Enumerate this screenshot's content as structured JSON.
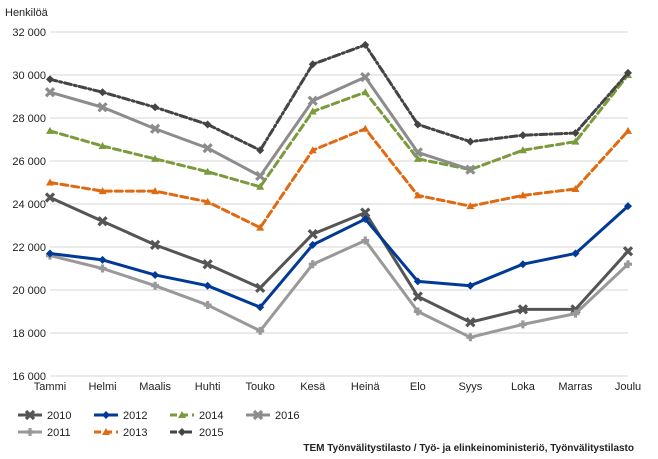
{
  "chart_data": {
    "type": "line",
    "title": "",
    "ylabel": "Henkilöä",
    "xlabel": "",
    "categories": [
      "Tammi",
      "Helmi",
      "Maalis",
      "Huhti",
      "Touko",
      "Kesä",
      "Heinä",
      "Elo",
      "Syys",
      "Loka",
      "Marras",
      "Joulu"
    ],
    "ylim": [
      16000,
      32000
    ],
    "yticks": [
      {
        "value": 16000,
        "label": "16 000"
      },
      {
        "value": 18000,
        "label": "18 000"
      },
      {
        "value": 20000,
        "label": "20 000"
      },
      {
        "value": 22000,
        "label": "22 000"
      },
      {
        "value": 24000,
        "label": "24 000"
      },
      {
        "value": 26000,
        "label": "26 000"
      },
      {
        "value": 28000,
        "label": "28 000"
      },
      {
        "value": 30000,
        "label": "30 000"
      },
      {
        "value": 32000,
        "label": "32 000"
      }
    ],
    "grid": true,
    "legend_position": "bottom-left",
    "series": [
      {
        "name": "2010",
        "color": "#555555",
        "dash": "solid",
        "marker": "x",
        "values": [
          24300,
          23200,
          22100,
          21200,
          20100,
          22600,
          23600,
          19700,
          18500,
          19100,
          19100,
          21800
        ]
      },
      {
        "name": "2011",
        "color": "#999999",
        "dash": "solid",
        "marker": "plus",
        "values": [
          21600,
          21000,
          20200,
          19300,
          18100,
          21200,
          22300,
          19000,
          17800,
          18400,
          18900,
          21200
        ]
      },
      {
        "name": "2012",
        "color": "#003a96",
        "dash": "solid",
        "marker": "diamond",
        "values": [
          21700,
          21400,
          20700,
          20200,
          19200,
          22100,
          23300,
          20400,
          20200,
          21200,
          21700,
          23900
        ]
      },
      {
        "name": "2013",
        "color": "#e06a12",
        "dash": "dash",
        "marker": "triangle",
        "values": [
          25000,
          24600,
          24600,
          24100,
          22900,
          26500,
          27500,
          24400,
          23900,
          24400,
          24700,
          27400
        ]
      },
      {
        "name": "2014",
        "color": "#7a9a3c",
        "dash": "dash",
        "marker": "triangle",
        "values": [
          27400,
          26700,
          26100,
          25500,
          24800,
          28300,
          29200,
          26100,
          25600,
          26500,
          26900,
          30000
        ]
      },
      {
        "name": "2015",
        "color": "#444444",
        "dash": "dashdot",
        "marker": "diamond",
        "values": [
          29800,
          29200,
          28500,
          27700,
          26500,
          30500,
          31400,
          27700,
          26900,
          27200,
          27300,
          30100
        ]
      },
      {
        "name": "2016",
        "color": "#8c8c8c",
        "dash": "solid",
        "marker": "x",
        "values": [
          29200,
          28500,
          27500,
          26600,
          25300,
          28800,
          29900,
          26400,
          25600,
          null,
          null,
          null
        ]
      }
    ],
    "legend_rows": [
      [
        "2010",
        "2012",
        "2014",
        "2016"
      ],
      [
        "2011",
        "2013",
        "2015"
      ]
    ],
    "source": "TEM Työnvälitystilasto / Työ- ja elinkeinoministeriö, Työnvälitystilasto"
  }
}
